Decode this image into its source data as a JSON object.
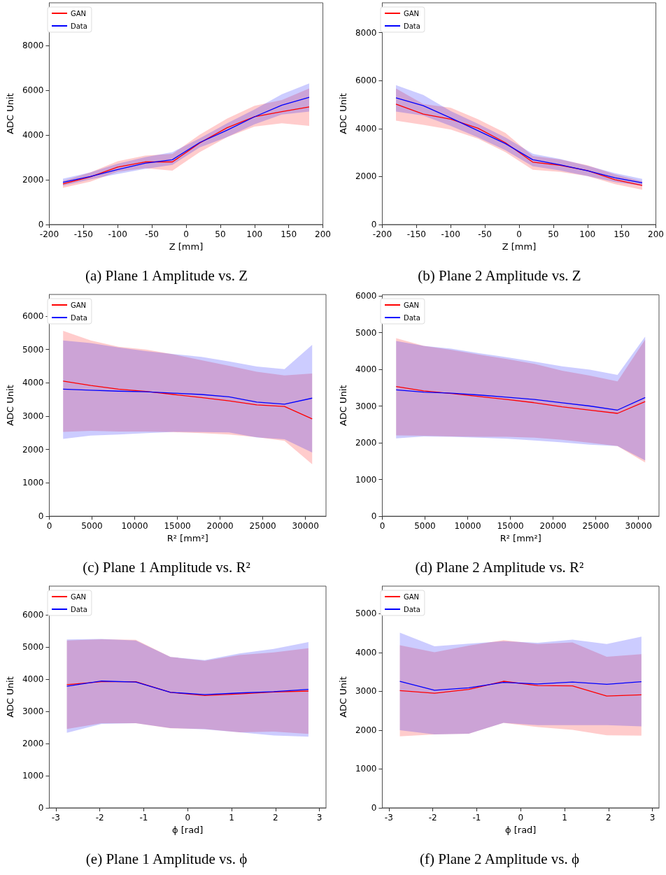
{
  "chart_data": [
    {
      "type": "line",
      "title": "(a) Plane 1 Amplitude vs. Z",
      "xlabel": "Z [mm]",
      "ylabel": "ADC Unit",
      "legend": "top left",
      "grid": false,
      "xlim": [
        -200,
        200
      ],
      "xticks": [
        -200,
        -150,
        -100,
        -50,
        0,
        50,
        100,
        150,
        200
      ],
      "ylim": [
        0,
        9920
      ],
      "yticks": [
        0,
        2000,
        4000,
        6000,
        8000
      ],
      "x": [
        -180,
        -140,
        -100,
        -60,
        -20,
        20,
        60,
        100,
        140,
        180
      ],
      "series": [
        {
          "name": "GAN",
          "color": "#ff0000",
          "values": [
            1820,
            2130,
            2570,
            2800,
            2800,
            3650,
            4330,
            4820,
            5050,
            5260
          ],
          "lower": [
            1640,
            1920,
            2360,
            2520,
            2410,
            3240,
            3910,
            4380,
            4530,
            4410
          ],
          "upper": [
            1950,
            2330,
            2830,
            3080,
            3160,
            4020,
            4740,
            5310,
            5570,
            6090
          ]
        },
        {
          "name": "Data",
          "color": "#0000ff",
          "values": [
            1890,
            2150,
            2460,
            2740,
            2900,
            3670,
            4220,
            4820,
            5340,
            5690
          ],
          "lower": [
            1740,
            2020,
            2260,
            2490,
            2670,
            3450,
            3910,
            4480,
            4920,
            5050
          ],
          "upper": [
            2050,
            2330,
            2720,
            3010,
            3240,
            3860,
            4530,
            5150,
            5830,
            6310
          ]
        }
      ]
    },
    {
      "type": "line",
      "title": "(b) Plane 2 Amplitude vs. Z",
      "xlabel": "Z [mm]",
      "ylabel": "ADC Unit",
      "legend": "top left",
      "grid": false,
      "xlim": [
        -200,
        200
      ],
      "xticks": [
        -200,
        -150,
        -100,
        -50,
        0,
        50,
        100,
        150,
        200
      ],
      "ylim": [
        0,
        9240
      ],
      "yticks": [
        0,
        2000,
        4000,
        6000,
        8000
      ],
      "x": [
        -180,
        -140,
        -100,
        -60,
        -20,
        20,
        60,
        100,
        140,
        180
      ],
      "series": [
        {
          "name": "GAN",
          "color": "#ff0000",
          "values": [
            5020,
            4600,
            4390,
            4010,
            3410,
            2600,
            2470,
            2250,
            1870,
            1630
          ],
          "lower": [
            4330,
            4150,
            3960,
            3580,
            3020,
            2280,
            2190,
            2020,
            1680,
            1450
          ],
          "upper": [
            5670,
            5020,
            4870,
            4390,
            3820,
            2860,
            2710,
            2470,
            2090,
            1800
          ]
        },
        {
          "name": "Data",
          "color": "#0000ff",
          "values": [
            5280,
            4950,
            4440,
            3910,
            3370,
            2700,
            2490,
            2240,
            1950,
            1740
          ],
          "lower": [
            4710,
            4540,
            4110,
            3630,
            3100,
            2430,
            2250,
            2020,
            1770,
            1610
          ],
          "upper": [
            5810,
            5400,
            4730,
            4200,
            3630,
            2950,
            2730,
            2450,
            2140,
            1900
          ]
        }
      ]
    },
    {
      "type": "line",
      "title": "(c) Plane 1 Amplitude vs. R²",
      "xlabel": "R² [mm²]",
      "ylabel": "ADC Unit",
      "legend": "top left",
      "grid": false,
      "xlim": [
        0,
        32400
      ],
      "xticks": [
        0,
        5000,
        10000,
        15000,
        20000,
        25000,
        30000
      ],
      "ylim": [
        0,
        6650
      ],
      "yticks": [
        0,
        1000,
        2000,
        3000,
        4000,
        5000,
        6000
      ],
      "x": [
        1620,
        4860,
        8100,
        11340,
        14580,
        17820,
        21060,
        24300,
        27540,
        30780
      ],
      "series": [
        {
          "name": "GAN",
          "color": "#ff0000",
          "values": [
            4050,
            3920,
            3810,
            3740,
            3650,
            3560,
            3460,
            3340,
            3290,
            2920
          ],
          "lower": [
            2530,
            2560,
            2540,
            2540,
            2520,
            2490,
            2450,
            2370,
            2260,
            1560
          ],
          "upper": [
            5560,
            5270,
            5080,
            5000,
            4850,
            4680,
            4510,
            4330,
            4220,
            4280
          ]
        },
        {
          "name": "Data",
          "color": "#0000ff",
          "values": [
            3810,
            3780,
            3750,
            3730,
            3690,
            3650,
            3580,
            3420,
            3360,
            3540
          ],
          "lower": [
            2320,
            2420,
            2450,
            2490,
            2530,
            2520,
            2510,
            2360,
            2310,
            1910
          ],
          "upper": [
            5270,
            5190,
            5060,
            4950,
            4860,
            4780,
            4640,
            4490,
            4410,
            5140
          ]
        }
      ]
    },
    {
      "type": "line",
      "title": "(d) Plane 2 Amplitude vs. R²",
      "xlabel": "R² [mm²]",
      "ylabel": "ADC Unit",
      "legend": "top left",
      "grid": false,
      "xlim": [
        0,
        32400
      ],
      "xticks": [
        0,
        5000,
        10000,
        15000,
        20000,
        25000,
        30000
      ],
      "ylim": [
        0,
        6030
      ],
      "yticks": [
        0,
        1000,
        2000,
        3000,
        4000,
        5000,
        6000
      ],
      "x": [
        1620,
        4860,
        8100,
        11340,
        14580,
        17820,
        21060,
        24300,
        27540,
        30780
      ],
      "series": [
        {
          "name": "GAN",
          "color": "#ff0000",
          "values": [
            3530,
            3410,
            3340,
            3260,
            3180,
            3090,
            2980,
            2890,
            2800,
            3120
          ],
          "lower": [
            2200,
            2190,
            2170,
            2160,
            2160,
            2140,
            2080,
            2000,
            1910,
            1460
          ],
          "upper": [
            4850,
            4640,
            4530,
            4400,
            4280,
            4150,
            3960,
            3830,
            3670,
            4810
          ]
        },
        {
          "name": "Data",
          "color": "#0000ff",
          "values": [
            3440,
            3380,
            3350,
            3300,
            3240,
            3180,
            3090,
            3000,
            2890,
            3230
          ],
          "lower": [
            2120,
            2170,
            2160,
            2140,
            2110,
            2060,
            2010,
            1950,
            1910,
            1520
          ],
          "upper": [
            4770,
            4640,
            4560,
            4440,
            4330,
            4210,
            4080,
            3990,
            3850,
            4890
          ]
        }
      ]
    },
    {
      "type": "line",
      "title": "(e) Plane 1 Amplitude vs. ϕ",
      "xlabel": "ϕ [rad]",
      "ylabel": "ADC Unit",
      "legend": "top left",
      "grid": false,
      "xlim": [
        -3.15,
        3.15
      ],
      "xticks": [
        -3,
        -2,
        -1,
        0,
        1,
        2,
        3
      ],
      "ylim": [
        0,
        6890
      ],
      "yticks": [
        0,
        1000,
        2000,
        3000,
        4000,
        5000,
        6000
      ],
      "x": [
        -2.75,
        -1.96,
        -1.18,
        -0.39,
        0.39,
        1.18,
        1.96,
        2.75
      ],
      "series": [
        {
          "name": "GAN",
          "color": "#ff0000",
          "values": [
            3830,
            3920,
            3920,
            3590,
            3490,
            3540,
            3600,
            3630
          ],
          "lower": [
            2450,
            2630,
            2630,
            2470,
            2450,
            2350,
            2370,
            2300
          ],
          "upper": [
            5200,
            5240,
            5220,
            4690,
            4570,
            4750,
            4830,
            4960
          ]
        },
        {
          "name": "Data",
          "color": "#0000ff",
          "values": [
            3780,
            3940,
            3910,
            3590,
            3520,
            3570,
            3610,
            3680
          ],
          "lower": [
            2330,
            2610,
            2630,
            2480,
            2440,
            2350,
            2250,
            2210
          ],
          "upper": [
            5230,
            5250,
            5200,
            4690,
            4590,
            4800,
            4940,
            5150
          ]
        }
      ]
    },
    {
      "type": "line",
      "title": "(f) Plane 2 Amplitude vs. ϕ",
      "xlabel": "ϕ [rad]",
      "ylabel": "ADC Unit",
      "legend": "top left",
      "grid": false,
      "xlim": [
        -3.15,
        3.15
      ],
      "xticks": [
        -3,
        -2,
        -1,
        0,
        1,
        2,
        3
      ],
      "ylim": [
        0,
        5710
      ],
      "yticks": [
        0,
        1000,
        2000,
        3000,
        4000,
        5000
      ],
      "x": [
        -2.75,
        -1.96,
        -1.18,
        -0.39,
        0.39,
        1.18,
        1.96,
        2.75
      ],
      "series": [
        {
          "name": "GAN",
          "color": "#ff0000",
          "values": [
            3020,
            2950,
            3050,
            3260,
            3150,
            3140,
            2880,
            2910
          ],
          "lower": [
            1840,
            1890,
            1910,
            2190,
            2080,
            2010,
            1870,
            1860
          ],
          "upper": [
            4190,
            4010,
            4180,
            4320,
            4220,
            4260,
            3890,
            3960
          ]
        },
        {
          "name": "Data",
          "color": "#0000ff",
          "values": [
            3260,
            3030,
            3090,
            3230,
            3190,
            3240,
            3180,
            3250
          ],
          "lower": [
            2000,
            1890,
            1910,
            2190,
            2130,
            2130,
            2130,
            2100
          ],
          "upper": [
            4510,
            4160,
            4230,
            4290,
            4250,
            4330,
            4220,
            4410
          ]
        }
      ]
    }
  ]
}
